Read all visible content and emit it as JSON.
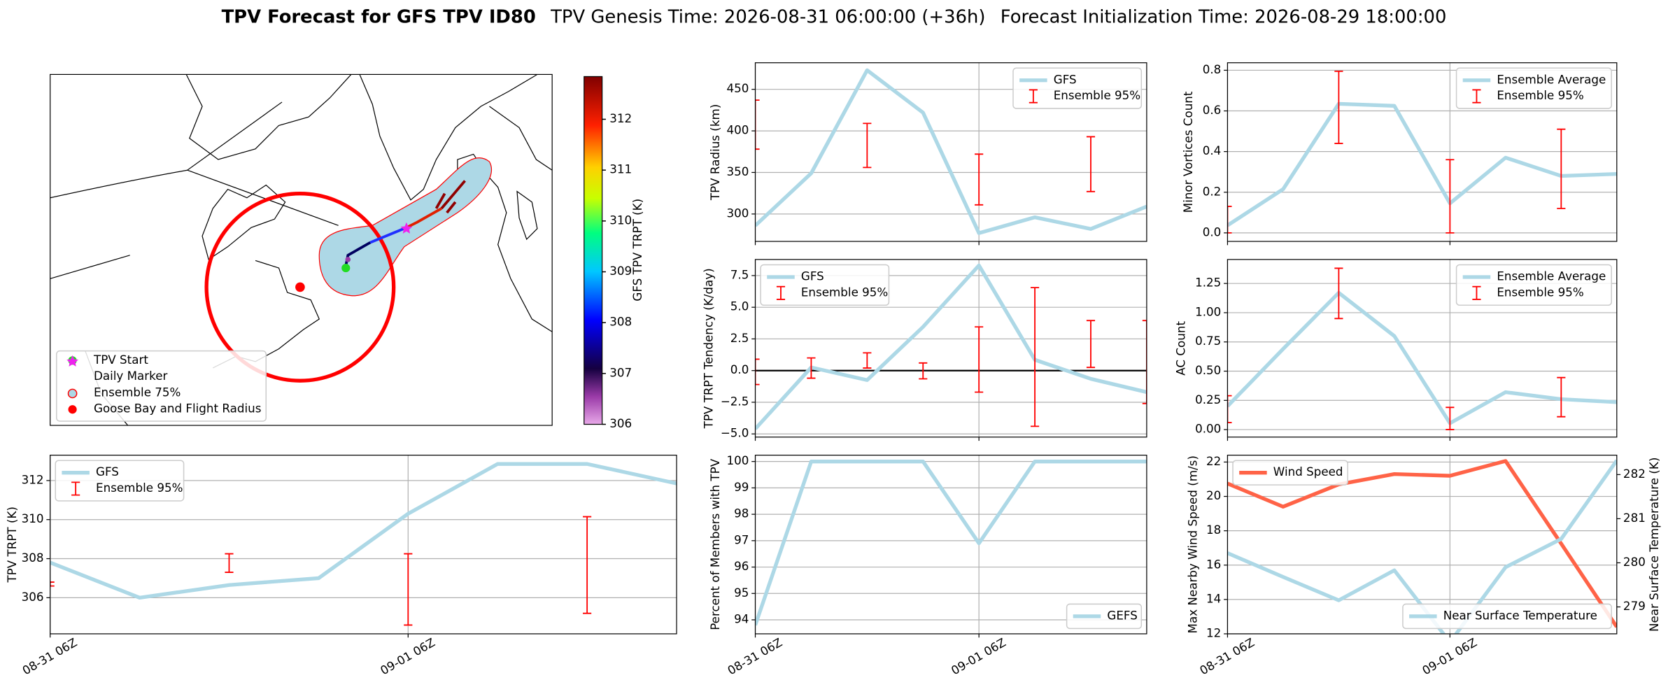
{
  "suptitle": {
    "bold": "TPV Forecast for GFS TPV ID80",
    "genesis": "TPV Genesis Time: 2026-08-31 06:00:00 (+36h)",
    "init": "Forecast Initialization Time: 2026-08-29 18:00:00"
  },
  "chart_data": [
    {
      "type": "map",
      "colorbar": {
        "label": "GFS TPV TRPT (K)",
        "lim": [
          306,
          312.84
        ],
        "ticks": [
          306,
          307,
          308,
          309,
          310,
          311,
          312
        ]
      },
      "legend": [
        "TPV Start",
        "Daily Marker",
        "Ensemble 75%",
        "Goose Bay and Flight Radius"
      ]
    },
    {
      "type": "line",
      "ylabel": "TPV Radius (km)",
      "x": [
        "2026-08-31 06:00",
        "2026-08-31 12:00",
        "2026-08-31 18:00",
        "2026-09-01 00:00",
        "2026-09-01 06:00",
        "2026-09-01 12:00",
        "2026-09-01 18:00",
        "2026-09-02 00:00"
      ],
      "xlim": [
        "2026-08-31 06:00",
        "2026-09-02 00:00"
      ],
      "xticks": [
        "2026-08-31 06:00",
        "2026-09-01 06:00"
      ],
      "ylim": [
        267,
        482
      ],
      "yticks": [
        300,
        350,
        400,
        450
      ],
      "grid": true,
      "legend": "upper right",
      "series": [
        {
          "name": "GFS",
          "color": "#add8e6",
          "values": [
            286,
            349,
            473,
            422,
            277,
            296,
            282,
            309
          ]
        }
      ],
      "errorbars": {
        "name": "Ensemble 95%",
        "color": "red",
        "x": [
          "2026-08-31 06:00",
          "2026-08-31 18:00",
          "2026-09-01 06:00",
          "2026-09-01 18:00"
        ],
        "low": [
          378,
          356,
          311,
          327
        ],
        "high": [
          437,
          409,
          372,
          393
        ]
      }
    },
    {
      "type": "line",
      "ylabel": "TPV TRPT Tendency (K/day)",
      "x": [
        "2026-08-31 06:00",
        "2026-08-31 12:00",
        "2026-08-31 18:00",
        "2026-09-01 00:00",
        "2026-09-01 06:00",
        "2026-09-01 12:00",
        "2026-09-01 18:00",
        "2026-09-02 00:00"
      ],
      "xlim": [
        "2026-08-31 06:00",
        "2026-09-02 00:00"
      ],
      "xticks": [
        "2026-08-31 06:00",
        "2026-09-01 06:00"
      ],
      "ylim": [
        -5.25,
        8.77
      ],
      "yticks": [
        {
          "value": -5,
          "label": "−5.0"
        },
        {
          "value": -2.5,
          "label": "−2.5"
        },
        {
          "value": 0,
          "label": "0.0"
        },
        2.5,
        {
          "value": 5,
          "label": "5.0"
        },
        7.5
      ],
      "grid": true,
      "legend": "upper left",
      "hline": 0,
      "series": [
        {
          "name": "GFS",
          "color": "#add8e6",
          "values": [
            -4.6,
            0.25,
            -0.75,
            3.45,
            8.3,
            0.85,
            -0.65,
            -1.7
          ]
        }
      ],
      "errorbars": {
        "name": "Ensemble 95%",
        "color": "red",
        "x": [
          "2026-08-31 06:00",
          "2026-08-31 12:00",
          "2026-08-31 18:00",
          "2026-09-01 00:00",
          "2026-09-01 06:00",
          "2026-09-01 12:00",
          "2026-09-01 18:00",
          "2026-09-02 00:00"
        ],
        "low": [
          -1.1,
          -0.6,
          0.2,
          -0.65,
          -1.7,
          -4.4,
          0.25,
          -2.6
        ],
        "high": [
          0.9,
          1.0,
          1.4,
          0.6,
          3.45,
          6.55,
          3.95,
          3.95
        ]
      }
    },
    {
      "type": "line",
      "ylabel": "Percent of Members with TPV",
      "x": [
        "2026-08-31 06:00",
        "2026-08-31 12:00",
        "2026-08-31 18:00",
        "2026-09-01 00:00",
        "2026-09-01 06:00",
        "2026-09-01 12:00",
        "2026-09-01 18:00",
        "2026-09-02 00:00"
      ],
      "xlim": [
        "2026-08-31 06:00",
        "2026-09-02 00:00"
      ],
      "xticks": [
        {
          "value": "2026-08-31 06:00",
          "label": "08-31 06Z"
        },
        {
          "value": "2026-09-01 06:00",
          "label": "09-01 06Z"
        }
      ],
      "ylim": [
        93.47,
        100.24
      ],
      "yticks": [
        94,
        95,
        96,
        97,
        98,
        99,
        100
      ],
      "grid": true,
      "legend": "lower right",
      "series": [
        {
          "name": "GEFS",
          "color": "#add8e6",
          "values": [
            93.8,
            100,
            100,
            100,
            96.9,
            100,
            100,
            100
          ]
        }
      ]
    },
    {
      "type": "line",
      "ylabel": "Minor Vortices Count",
      "x": [
        "2026-08-31 06:00",
        "2026-08-31 12:00",
        "2026-08-31 18:00",
        "2026-09-01 00:00",
        "2026-09-01 06:00",
        "2026-09-01 12:00",
        "2026-09-01 18:00",
        "2026-09-02 00:00"
      ],
      "xlim": [
        "2026-08-31 06:00",
        "2026-09-02 00:00"
      ],
      "xticks": [
        "2026-08-31 06:00",
        "2026-09-01 06:00"
      ],
      "ylim": [
        -0.042,
        0.837
      ],
      "yticks": [
        {
          "value": 0,
          "label": "0.0"
        },
        0.2,
        0.4,
        0.6,
        0.8
      ],
      "grid": true,
      "legend": "upper right",
      "series": [
        {
          "name": "Ensemble Average",
          "color": "#add8e6",
          "values": [
            0.037,
            0.215,
            0.635,
            0.625,
            0.145,
            0.37,
            0.28,
            0.29
          ]
        }
      ],
      "errorbars": {
        "name": "Ensemble 95%",
        "color": "red",
        "x": [
          "2026-08-31 06:00",
          "2026-08-31 18:00",
          "2026-09-01 06:00",
          "2026-09-01 18:00"
        ],
        "low": [
          0.0,
          0.44,
          0.0,
          0.12
        ],
        "high": [
          0.13,
          0.795,
          0.36,
          0.51
        ]
      }
    },
    {
      "type": "line",
      "ylabel": "AC Count",
      "x": [
        "2026-08-31 06:00",
        "2026-08-31 12:00",
        "2026-08-31 18:00",
        "2026-09-01 00:00",
        "2026-09-01 06:00",
        "2026-09-01 12:00",
        "2026-09-01 18:00",
        "2026-09-02 00:00"
      ],
      "xlim": [
        "2026-08-31 06:00",
        "2026-09-02 00:00"
      ],
      "xticks": [
        "2026-08-31 06:00",
        "2026-09-01 06:00"
      ],
      "ylim": [
        -0.064,
        1.455
      ],
      "yticks": [
        {
          "value": 0,
          "label": "0.00"
        },
        0.25,
        {
          "value": 0.5,
          "label": "0.50"
        },
        0.75,
        {
          "value": 1,
          "label": "1.00"
        },
        1.25
      ],
      "grid": true,
      "legend": "upper right",
      "series": [
        {
          "name": "Ensemble Average",
          "color": "#add8e6",
          "values": [
            0.2,
            0.69,
            1.17,
            0.8,
            0.055,
            0.32,
            0.26,
            0.235
          ]
        }
      ],
      "errorbars": {
        "name": "Ensemble 95%",
        "color": "red",
        "x": [
          "2026-08-31 06:00",
          "2026-08-31 18:00",
          "2026-09-01 06:00",
          "2026-09-01 18:00"
        ],
        "low": [
          0.06,
          0.95,
          0.0,
          0.11
        ],
        "high": [
          0.29,
          1.38,
          0.19,
          0.445
        ]
      }
    },
    {
      "type": "line",
      "ylabel": "Max Nearby Wind Speed (m/s)",
      "y2label": "Near Surface Temperature (K)",
      "ycolor": "#ff6347",
      "y2color": "#4169e1",
      "x": [
        "2026-08-31 06:00",
        "2026-08-31 12:00",
        "2026-08-31 18:00",
        "2026-09-01 00:00",
        "2026-09-01 06:00",
        "2026-09-01 12:00",
        "2026-09-01 18:00",
        "2026-09-02 00:00"
      ],
      "xlim": [
        "2026-08-31 06:00",
        "2026-09-02 00:00"
      ],
      "xticks": [
        {
          "value": "2026-08-31 06:00",
          "label": "08-31 06Z"
        },
        {
          "value": "2026-09-01 06:00",
          "label": "09-01 06Z"
        }
      ],
      "ylim": [
        12,
        22.4
      ],
      "yticks": [
        12,
        14,
        16,
        18,
        20,
        22
      ],
      "y2lim": [
        278.39,
        282.44
      ],
      "y2ticks": [
        279,
        280,
        281,
        282
      ],
      "grid": true,
      "series": [
        {
          "name": "Wind Speed",
          "color": "#ff6347",
          "legend": "upper left",
          "values": [
            20.75,
            19.4,
            20.7,
            21.3,
            21.2,
            22.06,
            17.25,
            12.4
          ]
        },
        {
          "name": "Near Surface Temperature",
          "color": "#add8e6",
          "axis": "y2",
          "legend": "lower right",
          "values": [
            280.22,
            279.68,
            279.15,
            279.83,
            278.2,
            279.9,
            280.54,
            282.32
          ]
        }
      ]
    },
    {
      "type": "line",
      "ylabel": "TPV TRPT (K)",
      "x": [
        "2026-08-31 06:00",
        "2026-08-31 12:00",
        "2026-08-31 18:00",
        "2026-09-01 00:00",
        "2026-09-01 06:00",
        "2026-09-01 12:00",
        "2026-09-01 18:00",
        "2026-09-02 00:00"
      ],
      "xlim": [
        "2026-08-31 06:00",
        "2026-09-02 00:00"
      ],
      "xticks": [
        {
          "value": "2026-08-31 06:00",
          "label": "08-31 06Z"
        },
        {
          "value": "2026-09-01 06:00",
          "label": "09-01 06Z"
        }
      ],
      "ylim": [
        304.15,
        313.3
      ],
      "yticks": [
        306,
        308,
        310,
        312
      ],
      "grid": true,
      "legend": "upper left",
      "series": [
        {
          "name": "GFS",
          "color": "#add8e6",
          "values": [
            307.8,
            306.0,
            306.65,
            307.0,
            310.3,
            312.85,
            312.85,
            311.85
          ]
        }
      ],
      "errorbars": {
        "name": "Ensemble 95%",
        "color": "red",
        "x": [
          "2026-08-31 06:00",
          "2026-08-31 18:00",
          "2026-09-01 06:00",
          "2026-09-01 18:00"
        ],
        "low": [
          306.6,
          307.3,
          304.6,
          305.2
        ],
        "high": [
          306.8,
          308.25,
          308.25,
          310.15
        ]
      }
    }
  ]
}
